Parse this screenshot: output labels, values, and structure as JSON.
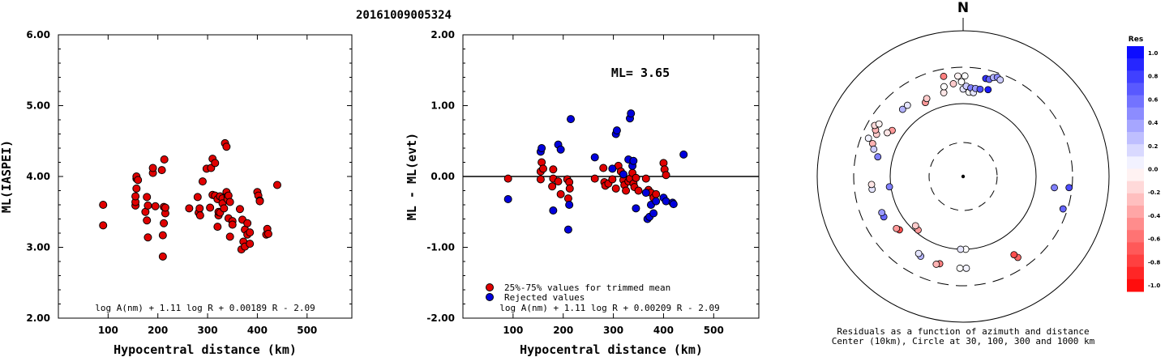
{
  "figure_title": "20161009005324",
  "chart_data": [
    {
      "type": "scatter",
      "panel": "left",
      "xlabel": "Hypocentral distance (km)",
      "ylabel": "ML(IASPEI)",
      "xlim": [
        0,
        590
      ],
      "ylim": [
        2.0,
        6.0
      ],
      "x_ticks": [
        100,
        200,
        300,
        400,
        500
      ],
      "y_ticks": [
        2.0,
        3.0,
        4.0,
        5.0,
        6.0
      ],
      "y_tick_labels": [
        "2.00",
        "3.00",
        "4.00",
        "5.00",
        "6.00"
      ],
      "formula": "log A(nm) + 1.11 log R + 0.00189 R - 2.09",
      "series": [
        {
          "color": "#e00000",
          "x": [
            90,
            90,
            155,
            155,
            155,
            157,
            157,
            157,
            160,
            175,
            178,
            178,
            180,
            180,
            190,
            190,
            195,
            208,
            210,
            210,
            212,
            212,
            213,
            215,
            215,
            263,
            280,
            282,
            284,
            285,
            290,
            298,
            305,
            307,
            310,
            310,
            315,
            315,
            320,
            320,
            322,
            322,
            325,
            325,
            330,
            330,
            333,
            335,
            338,
            338,
            340,
            340,
            342,
            342,
            345,
            345,
            350,
            350,
            365,
            368,
            370,
            372,
            375,
            375,
            380,
            380,
            385,
            385,
            400,
            402,
            405,
            405,
            418,
            420,
            422,
            440
          ],
          "y": [
            3.6,
            3.31,
            3.59,
            3.64,
            3.72,
            3.83,
            3.97,
            4.0,
            3.95,
            3.5,
            3.71,
            3.38,
            3.14,
            3.59,
            4.05,
            4.12,
            3.58,
            4.09,
            2.87,
            3.17,
            3.34,
            3.57,
            4.24,
            3.48,
            3.56,
            3.55,
            3.71,
            3.49,
            3.55,
            3.45,
            3.93,
            4.11,
            3.56,
            4.12,
            3.74,
            4.25,
            4.19,
            3.73,
            3.68,
            3.29,
            3.45,
            3.5,
            3.49,
            3.72,
            3.69,
            3.62,
            3.55,
            4.47,
            4.42,
            3.78,
            3.72,
            3.68,
            3.73,
            3.41,
            3.64,
            3.15,
            3.37,
            3.32,
            3.54,
            2.97,
            3.39,
            3.08,
            3.25,
            3.01,
            3.18,
            3.34,
            3.21,
            3.05,
            3.78,
            3.73,
            3.66,
            3.65,
            3.18,
            3.26,
            3.19,
            3.88
          ]
        }
      ]
    },
    {
      "type": "scatter",
      "panel": "middle",
      "xlabel": "Hypocentral distance (km)",
      "ylabel": "ML - ML(evt)",
      "xlim": [
        0,
        590
      ],
      "ylim": [
        -2.0,
        2.0
      ],
      "x_ticks": [
        100,
        200,
        300,
        400,
        500
      ],
      "y_ticks": [
        -2.0,
        -1.0,
        0.0,
        1.0,
        2.0
      ],
      "y_tick_labels": [
        "-2.00",
        "-1.00",
        "0.00",
        "1.00",
        "2.00"
      ],
      "zero_line": 0.0,
      "annotation": "ML= 3.65",
      "formula": "log A(nm) + 1.11 log R + 0.00209 R - 2.09",
      "legend": [
        {
          "label": "25%-75% values for trimmed mean",
          "color": "#e00000"
        },
        {
          "label": "Rejected values",
          "color": "#0000dd"
        }
      ],
      "series": [
        {
          "color": "#e00000",
          "x": [
            90,
            155,
            155,
            157,
            160,
            178,
            180,
            180,
            190,
            195,
            208,
            210,
            212,
            213,
            263,
            280,
            282,
            284,
            290,
            298,
            305,
            310,
            315,
            320,
            322,
            325,
            330,
            333,
            338,
            340,
            342,
            345,
            350,
            365,
            370,
            375,
            380,
            385,
            400,
            402,
            405
          ],
          "y": [
            -0.03,
            0.07,
            -0.04,
            0.2,
            0.11,
            -0.14,
            -0.03,
            0.1,
            -0.07,
            -0.25,
            -0.04,
            -0.31,
            -0.08,
            -0.17,
            -0.03,
            0.12,
            -0.08,
            -0.13,
            -0.1,
            -0.04,
            -0.17,
            0.15,
            0.07,
            -0.05,
            -0.12,
            -0.2,
            -0.07,
            -0.03,
            0.05,
            -0.1,
            -0.15,
            -0.02,
            -0.2,
            -0.03,
            -0.19,
            -0.23,
            -0.3,
            -0.25,
            0.19,
            0.1,
            0.02
          ]
        },
        {
          "color": "#0000dd",
          "x": [
            90,
            155,
            157,
            180,
            190,
            195,
            210,
            212,
            215,
            263,
            298,
            305,
            307,
            320,
            330,
            333,
            335,
            338,
            340,
            345,
            365,
            368,
            372,
            375,
            380,
            385,
            400,
            405,
            418,
            420,
            440
          ],
          "y": [
            -0.32,
            0.35,
            0.4,
            -0.48,
            0.45,
            0.38,
            -0.75,
            -0.4,
            0.81,
            0.27,
            0.11,
            0.6,
            0.65,
            0.03,
            0.24,
            0.82,
            0.89,
            0.15,
            0.22,
            -0.45,
            -0.23,
            -0.6,
            -0.57,
            -0.4,
            -0.52,
            -0.35,
            -0.3,
            -0.35,
            -0.37,
            -0.39,
            0.31
          ]
        }
      ]
    },
    {
      "type": "polar-scatter",
      "panel": "right",
      "north_label": "N",
      "caption_line1": "Residuals as a function of azimuth and distance",
      "caption_line2": "Center (10km), Circle at 30, 100, 300 and 1000 km",
      "colorbar": {
        "title": "Res",
        "range": [
          -1.0,
          1.0
        ],
        "tick_labels": [
          "1.0",
          "0.8",
          "0.6",
          "0.4",
          "0.2",
          "0.0",
          "-0.2",
          "-0.4",
          "-0.6",
          "-0.8",
          "-1.0"
        ],
        "high_color": "#0000ff",
        "low_color": "#ff0000"
      },
      "points": [
        {
          "az": 296,
          "r": 0.66,
          "res": -0.2
        },
        {
          "az": 298,
          "r": 0.68,
          "res": -0.3
        },
        {
          "az": 300,
          "r": 0.7,
          "res": -0.15
        },
        {
          "az": 302,
          "r": 0.68,
          "res": -0.05
        },
        {
          "az": 292,
          "r": 0.7,
          "res": 0.05
        },
        {
          "az": 290,
          "r": 0.66,
          "res": -0.3
        },
        {
          "az": 303,
          "r": 0.58,
          "res": -0.4
        },
        {
          "az": 300,
          "r": 0.6,
          "res": -0.1
        },
        {
          "az": 287,
          "r": 0.64,
          "res": 0.2
        },
        {
          "az": 283,
          "r": 0.6,
          "res": 0.5
        },
        {
          "az": 318,
          "r": 0.62,
          "res": 0.3
        },
        {
          "az": 322,
          "r": 0.62,
          "res": 0.1
        },
        {
          "az": 333,
          "r": 0.57,
          "res": -0.4
        },
        {
          "az": 335,
          "r": 0.59,
          "res": -0.2
        },
        {
          "az": 347,
          "r": 0.59,
          "res": -0.1
        },
        {
          "az": 348,
          "r": 0.63,
          "res": 0.0
        },
        {
          "az": 349,
          "r": 0.7,
          "res": -0.5
        },
        {
          "az": 354,
          "r": 0.64,
          "res": -0.2
        },
        {
          "az": 357,
          "r": 0.69,
          "res": -0.05
        },
        {
          "az": 359,
          "r": 0.65,
          "res": 0.0
        },
        {
          "az": 0,
          "r": 0.6,
          "res": 0.1
        },
        {
          "az": 1,
          "r": 0.69,
          "res": 0.0
        },
        {
          "az": 2,
          "r": 0.62,
          "res": 0.2
        },
        {
          "az": 4,
          "r": 0.58,
          "res": 0.0
        },
        {
          "az": 5,
          "r": 0.61,
          "res": 0.5
        },
        {
          "az": 7,
          "r": 0.58,
          "res": 0.1
        },
        {
          "az": 8,
          "r": 0.61,
          "res": 0.4
        },
        {
          "az": 11,
          "r": 0.61,
          "res": 0.7
        },
        {
          "az": 13,
          "r": 0.69,
          "res": 0.8
        },
        {
          "az": 15,
          "r": 0.69,
          "res": 0.6
        },
        {
          "az": 16,
          "r": 0.62,
          "res": 0.9
        },
        {
          "az": 17,
          "r": 0.71,
          "res": 0.3
        },
        {
          "az": 19,
          "r": 0.72,
          "res": 0.45
        },
        {
          "az": 21,
          "r": 0.71,
          "res": 0.2
        },
        {
          "az": 96,
          "r": 0.73,
          "res": 0.7
        },
        {
          "az": 97,
          "r": 0.63,
          "res": 0.5
        },
        {
          "az": 108,
          "r": 0.72,
          "res": 0.6
        },
        {
          "az": 178,
          "r": 0.5,
          "res": 0.0
        },
        {
          "az": 182,
          "r": 0.5,
          "res": 0.1
        },
        {
          "az": 178,
          "r": 0.63,
          "res": 0.05
        },
        {
          "az": 182,
          "r": 0.63,
          "res": 0.0
        },
        {
          "az": 195,
          "r": 0.62,
          "res": -0.5
        },
        {
          "az": 197,
          "r": 0.63,
          "res": -0.3
        },
        {
          "az": 208,
          "r": 0.62,
          "res": 0.3
        },
        {
          "az": 210,
          "r": 0.61,
          "res": 0.1
        },
        {
          "az": 220,
          "r": 0.48,
          "res": -0.4
        },
        {
          "az": 224,
          "r": 0.47,
          "res": -0.2
        },
        {
          "az": 230,
          "r": 0.57,
          "res": -0.7
        },
        {
          "az": 232,
          "r": 0.58,
          "res": -0.4
        },
        {
          "az": 146,
          "r": 0.67,
          "res": -0.6
        },
        {
          "az": 147,
          "r": 0.64,
          "res": -0.7
        },
        {
          "az": 243,
          "r": 0.61,
          "res": 0.6
        },
        {
          "az": 246,
          "r": 0.61,
          "res": 0.4
        },
        {
          "az": 262,
          "r": 0.63,
          "res": 0.1
        },
        {
          "az": 265,
          "r": 0.63,
          "res": -0.1
        },
        {
          "az": 262,
          "r": 0.51,
          "res": 0.5
        }
      ]
    }
  ]
}
